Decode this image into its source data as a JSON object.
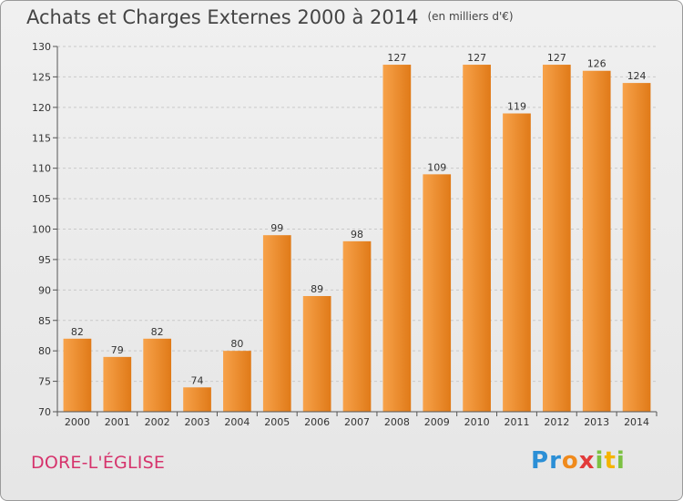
{
  "header": {
    "title": "Achats et Charges Externes 2000 à 2014",
    "unit": "(en milliers d'€)"
  },
  "footer": {
    "commune": "DORE-L'ÉGLISE",
    "logo_letters": [
      {
        "ch": "P",
        "color": "#2b8fd6"
      },
      {
        "ch": "r",
        "color": "#2b8fd6"
      },
      {
        "ch": "o",
        "color": "#f08a1c"
      },
      {
        "ch": "x",
        "color": "#e23b3b"
      },
      {
        "ch": "i",
        "color": "#7cc142"
      },
      {
        "ch": "t",
        "color": "#f4b400"
      },
      {
        "ch": "i",
        "color": "#7cc142"
      }
    ]
  },
  "chart_data": {
    "type": "bar",
    "title": "Achats et Charges Externes 2000 à 2014",
    "subtitle": "(en milliers d'€)",
    "categories": [
      "2000",
      "2001",
      "2002",
      "2003",
      "2004",
      "2005",
      "2006",
      "2007",
      "2008",
      "2009",
      "2010",
      "2011",
      "2012",
      "2013",
      "2014"
    ],
    "values": [
      82,
      79,
      82,
      74,
      80,
      99,
      89,
      98,
      127,
      109,
      127,
      119,
      127,
      126,
      124
    ],
    "ylim": [
      70,
      130
    ],
    "yticks": [
      70,
      75,
      80,
      85,
      90,
      95,
      100,
      105,
      110,
      115,
      120,
      125,
      130
    ],
    "grid": true,
    "bar_color": "#f08a2a"
  }
}
